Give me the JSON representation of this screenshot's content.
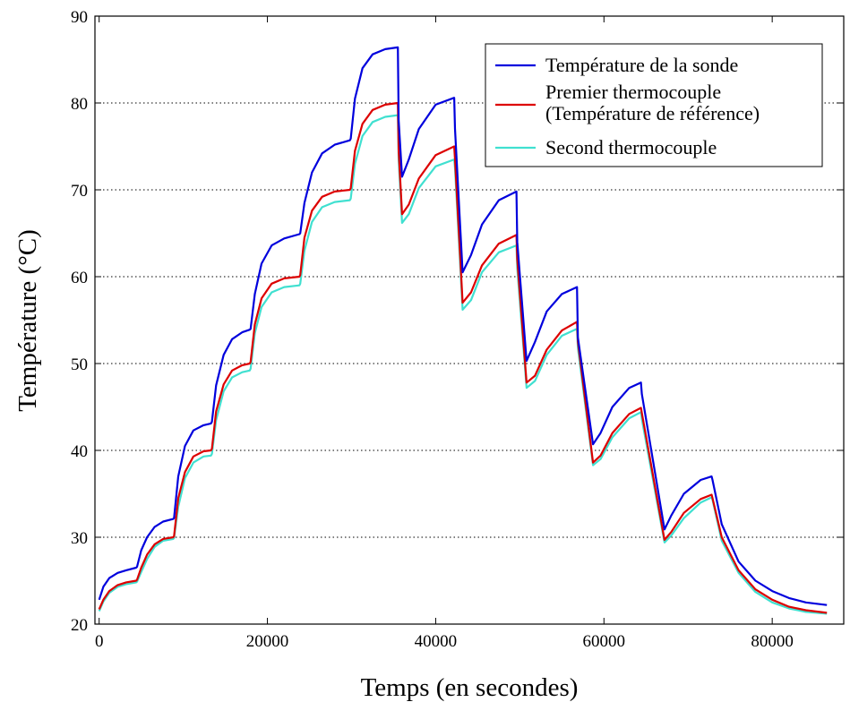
{
  "chart_data": {
    "type": "line",
    "title": "",
    "xlabel": "Temps (en secondes)",
    "ylabel": "Température (°C)",
    "xlim": [
      -500,
      88500
    ],
    "ylim": [
      20,
      90
    ],
    "xticks": [
      0,
      20000,
      40000,
      60000,
      80000
    ],
    "yticks": [
      20,
      30,
      40,
      50,
      60,
      70,
      80,
      90
    ],
    "xtick_labels": [
      "0",
      "20000",
      "40000",
      "60000",
      "80000"
    ],
    "ytick_labels": [
      "20",
      "30",
      "40",
      "50",
      "60",
      "70",
      "80",
      "90"
    ],
    "grid": "horizontal dotted",
    "legend_position": "top-right",
    "legend": [
      {
        "label_lines": [
          "Température de la sonde"
        ],
        "color": "#0000dd"
      },
      {
        "label_lines": [
          "Premier thermocouple",
          "(Température de référence)"
        ],
        "color": "#dd0000"
      },
      {
        "label_lines": [
          "Second thermocouple"
        ],
        "color": "#40e0d0"
      }
    ],
    "series": [
      {
        "name": "Température de la sonde",
        "color": "#0000dd",
        "x": [
          0,
          500,
          1200,
          2200,
          3200,
          4400,
          4500,
          5000,
          5700,
          6600,
          7600,
          8800,
          8900,
          9400,
          10200,
          11200,
          12400,
          13300,
          13400,
          13900,
          14800,
          15800,
          17000,
          17900,
          18000,
          18500,
          19300,
          20500,
          22000,
          23800,
          23900,
          24400,
          25300,
          26500,
          28000,
          29800,
          29900,
          30400,
          31300,
          32500,
          34000,
          35500,
          35600,
          36000,
          36800,
          38000,
          40000,
          42200,
          42300,
          43200,
          44200,
          45500,
          47500,
          49600,
          49700,
          50800,
          51800,
          53200,
          55000,
          56800,
          56900,
          58700,
          59600,
          61000,
          63000,
          64400,
          64500,
          67200,
          68000,
          69500,
          71500,
          72800,
          72900,
          74000,
          76000,
          78000,
          80000,
          82000,
          84000,
          86500
        ],
        "y": [
          22.8,
          24.3,
          25.3,
          25.9,
          26.2,
          26.5,
          26.6,
          28.5,
          30.0,
          31.2,
          31.8,
          32.1,
          32.2,
          37.0,
          40.5,
          42.3,
          42.9,
          43.1,
          43.3,
          47.5,
          51.0,
          52.8,
          53.6,
          53.9,
          54.0,
          58.0,
          61.5,
          63.6,
          64.4,
          64.9,
          65.0,
          68.5,
          72.0,
          74.2,
          75.2,
          75.7,
          75.9,
          80.5,
          84.0,
          85.6,
          86.2,
          86.4,
          78.0,
          71.5,
          73.5,
          77.0,
          79.8,
          80.6,
          77.0,
          60.5,
          62.5,
          66.0,
          68.8,
          69.8,
          64.0,
          50.3,
          52.5,
          56.0,
          58.0,
          58.8,
          53.0,
          40.7,
          42.0,
          45.0,
          47.2,
          47.8,
          46.5,
          30.9,
          32.5,
          35.0,
          36.6,
          37.0,
          36.6,
          31.5,
          27.2,
          25.0,
          23.8,
          23.0,
          22.5,
          22.2
        ]
      },
      {
        "name": "Premier thermocouple (Température de référence)",
        "color": "#dd0000",
        "x": [
          0,
          500,
          1200,
          2200,
          3200,
          4400,
          4500,
          5000,
          5700,
          6600,
          7600,
          8800,
          8900,
          9400,
          10200,
          11200,
          12400,
          13300,
          13400,
          13900,
          14800,
          15800,
          17000,
          17900,
          18000,
          18500,
          19300,
          20500,
          22000,
          23800,
          23900,
          24400,
          25300,
          26500,
          28000,
          29800,
          29900,
          30400,
          31300,
          32500,
          34000,
          35500,
          35600,
          36000,
          36800,
          38000,
          40000,
          42200,
          42300,
          43200,
          44200,
          45500,
          47500,
          49600,
          49700,
          50800,
          51800,
          53200,
          55000,
          56800,
          56900,
          58700,
          59600,
          61000,
          63000,
          64400,
          64500,
          67200,
          68000,
          69500,
          71500,
          72800,
          72900,
          74000,
          76000,
          78000,
          80000,
          82000,
          84000,
          86500
        ],
        "y": [
          21.7,
          22.8,
          23.8,
          24.5,
          24.8,
          25.0,
          25.1,
          26.5,
          28.0,
          29.2,
          29.8,
          30.0,
          30.1,
          34.5,
          37.5,
          39.3,
          39.9,
          40.0,
          40.2,
          44.5,
          47.6,
          49.2,
          49.8,
          50.0,
          50.2,
          54.5,
          57.5,
          59.2,
          59.8,
          60.0,
          60.2,
          64.5,
          67.6,
          69.2,
          69.8,
          70.0,
          70.2,
          74.5,
          77.6,
          79.2,
          79.8,
          80.0,
          74.5,
          67.2,
          68.3,
          71.3,
          74.0,
          75.0,
          73.5,
          57.0,
          58.2,
          61.3,
          63.8,
          64.8,
          62.0,
          47.8,
          48.6,
          51.6,
          53.8,
          54.8,
          52.5,
          38.6,
          39.4,
          42.0,
          44.2,
          44.9,
          44.3,
          29.7,
          30.6,
          32.8,
          34.4,
          34.9,
          34.5,
          30.0,
          26.2,
          24.0,
          22.8,
          22.0,
          21.6,
          21.3
        ]
      },
      {
        "name": "Second thermocouple",
        "color": "#40e0d0",
        "x": [
          0,
          500,
          1200,
          2200,
          3200,
          4400,
          4500,
          5000,
          5700,
          6600,
          7600,
          8800,
          8900,
          9400,
          10200,
          11200,
          12400,
          13300,
          13400,
          13900,
          14800,
          15800,
          17000,
          17900,
          18000,
          18500,
          19300,
          20500,
          22000,
          23800,
          23900,
          24400,
          25300,
          26500,
          28000,
          29800,
          29900,
          30400,
          31300,
          32500,
          34000,
          35500,
          35600,
          36000,
          36800,
          38000,
          40000,
          42200,
          42300,
          43200,
          44200,
          45500,
          47500,
          49600,
          49700,
          50800,
          51800,
          53200,
          55000,
          56800,
          56900,
          58700,
          59600,
          61000,
          63000,
          64400,
          64500,
          67200,
          68000,
          69500,
          71500,
          72800,
          72900,
          74000,
          76000,
          78000,
          80000,
          82000,
          84000,
          86500
        ],
        "y": [
          21.5,
          22.6,
          23.6,
          24.3,
          24.6,
          24.8,
          24.9,
          26.0,
          27.5,
          28.9,
          29.6,
          29.8,
          29.9,
          33.5,
          36.8,
          38.6,
          39.3,
          39.4,
          39.6,
          43.5,
          46.8,
          48.4,
          49.0,
          49.2,
          49.4,
          53.5,
          56.5,
          58.2,
          58.8,
          59.0,
          59.2,
          63.0,
          66.3,
          68.0,
          68.6,
          68.8,
          69.0,
          73.0,
          76.2,
          77.8,
          78.4,
          78.6,
          73.5,
          66.2,
          67.2,
          70.2,
          72.7,
          73.5,
          72.5,
          56.2,
          57.3,
          60.5,
          62.8,
          63.6,
          61.0,
          47.2,
          48.0,
          51.0,
          53.2,
          54.0,
          51.8,
          38.3,
          39.0,
          41.5,
          43.7,
          44.4,
          43.6,
          29.4,
          30.2,
          32.2,
          34.0,
          34.6,
          34.3,
          29.6,
          25.9,
          23.7,
          22.5,
          21.8,
          21.4,
          21.2
        ]
      }
    ]
  }
}
